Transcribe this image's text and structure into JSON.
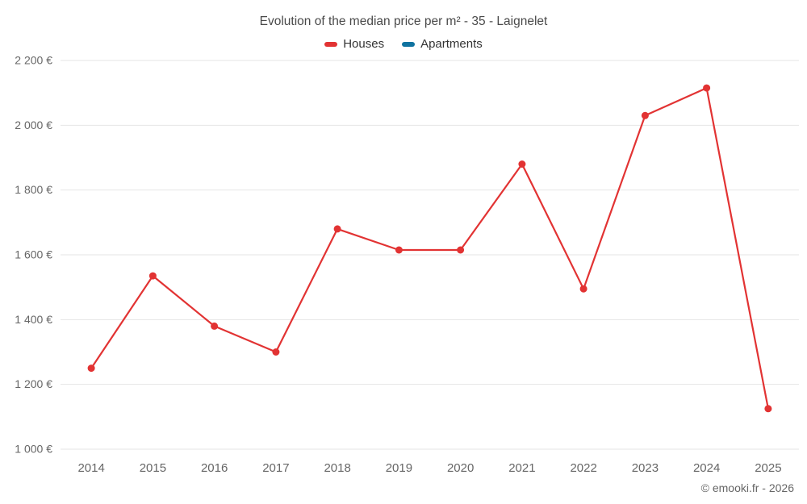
{
  "header": {
    "title": "Evolution of the median price per m² - 35 - Laignelet"
  },
  "legend": {
    "items": [
      {
        "label": "Houses",
        "color": "#e23333"
      },
      {
        "label": "Apartments",
        "color": "#1073a0"
      }
    ]
  },
  "footer": {
    "copyright": "© emooki.fr - 2026"
  },
  "chart_data": {
    "type": "line",
    "title": "Evolution of the median price per m² - 35 - Laignelet",
    "categories": [
      "2014",
      "2015",
      "2016",
      "2017",
      "2018",
      "2019",
      "2020",
      "2021",
      "2022",
      "2023",
      "2024",
      "2025"
    ],
    "series": [
      {
        "name": "Houses",
        "color": "#e23333",
        "values": [
          1250,
          1535,
          1380,
          1300,
          1680,
          1615,
          1615,
          1880,
          1495,
          2030,
          2115,
          1125
        ]
      },
      {
        "name": "Apartments",
        "color": "#1073a0",
        "values": []
      }
    ],
    "xlabel": "",
    "ylabel": "",
    "ylim": [
      1000,
      2200
    ],
    "ytick_step": 200,
    "ytick_labels": [
      "1 000 €",
      "1 200 €",
      "1 400 €",
      "1 600 €",
      "1 800 €",
      "2 000 €",
      "2 200 €"
    ],
    "grid": true,
    "grid_color": "#e6e6e6",
    "legend_position": "top",
    "marker_radius": 4.5,
    "line_width": 2.2
  }
}
